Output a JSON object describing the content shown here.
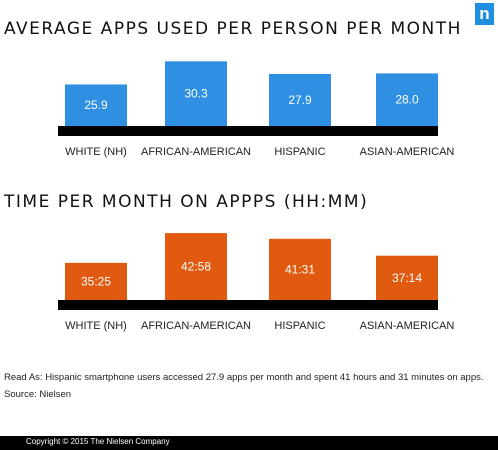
{
  "logo": "n",
  "chart_data": [
    {
      "type": "bar",
      "title": "AVERAGE APPS USED PER PERSON PER MONTH",
      "categories": [
        "WHITE (NH)",
        "AFRICAN-AMERICAN",
        "HISPANIC",
        "ASIAN-AMERICAN"
      ],
      "values": [
        25.9,
        30.3,
        27.9,
        28.0
      ],
      "value_labels": [
        "25.9",
        "30.3",
        "27.9",
        "28.0"
      ],
      "units": "apps",
      "ylim": [
        18,
        31.5
      ],
      "color": "#2e8fe3",
      "grid": false,
      "legend": "none"
    },
    {
      "type": "bar",
      "title": "TIME PER MONTH ON APPPS (HH:MM)",
      "categories": [
        "WHITE (NH)",
        "AFRICAN-AMERICAN",
        "HISPANIC",
        "ASIAN-AMERICAN"
      ],
      "values": [
        35.4167,
        42.9667,
        41.5167,
        37.2333
      ],
      "value_labels": [
        "35:25",
        "42:58",
        "41:31",
        "37:14"
      ],
      "units": "hours",
      "ylim": [
        26,
        44
      ],
      "color": "#e05a10",
      "grid": false,
      "legend": "none"
    }
  ],
  "notes": {
    "read_as": "Read As: Hispanic smartphone users accessed 27.9 apps per month and spent 41 hours and 31 minutes on apps.",
    "source": "Source: Nielsen"
  },
  "footer": {
    "copyright": "Copyright © 2015 The Nielsen Company"
  }
}
